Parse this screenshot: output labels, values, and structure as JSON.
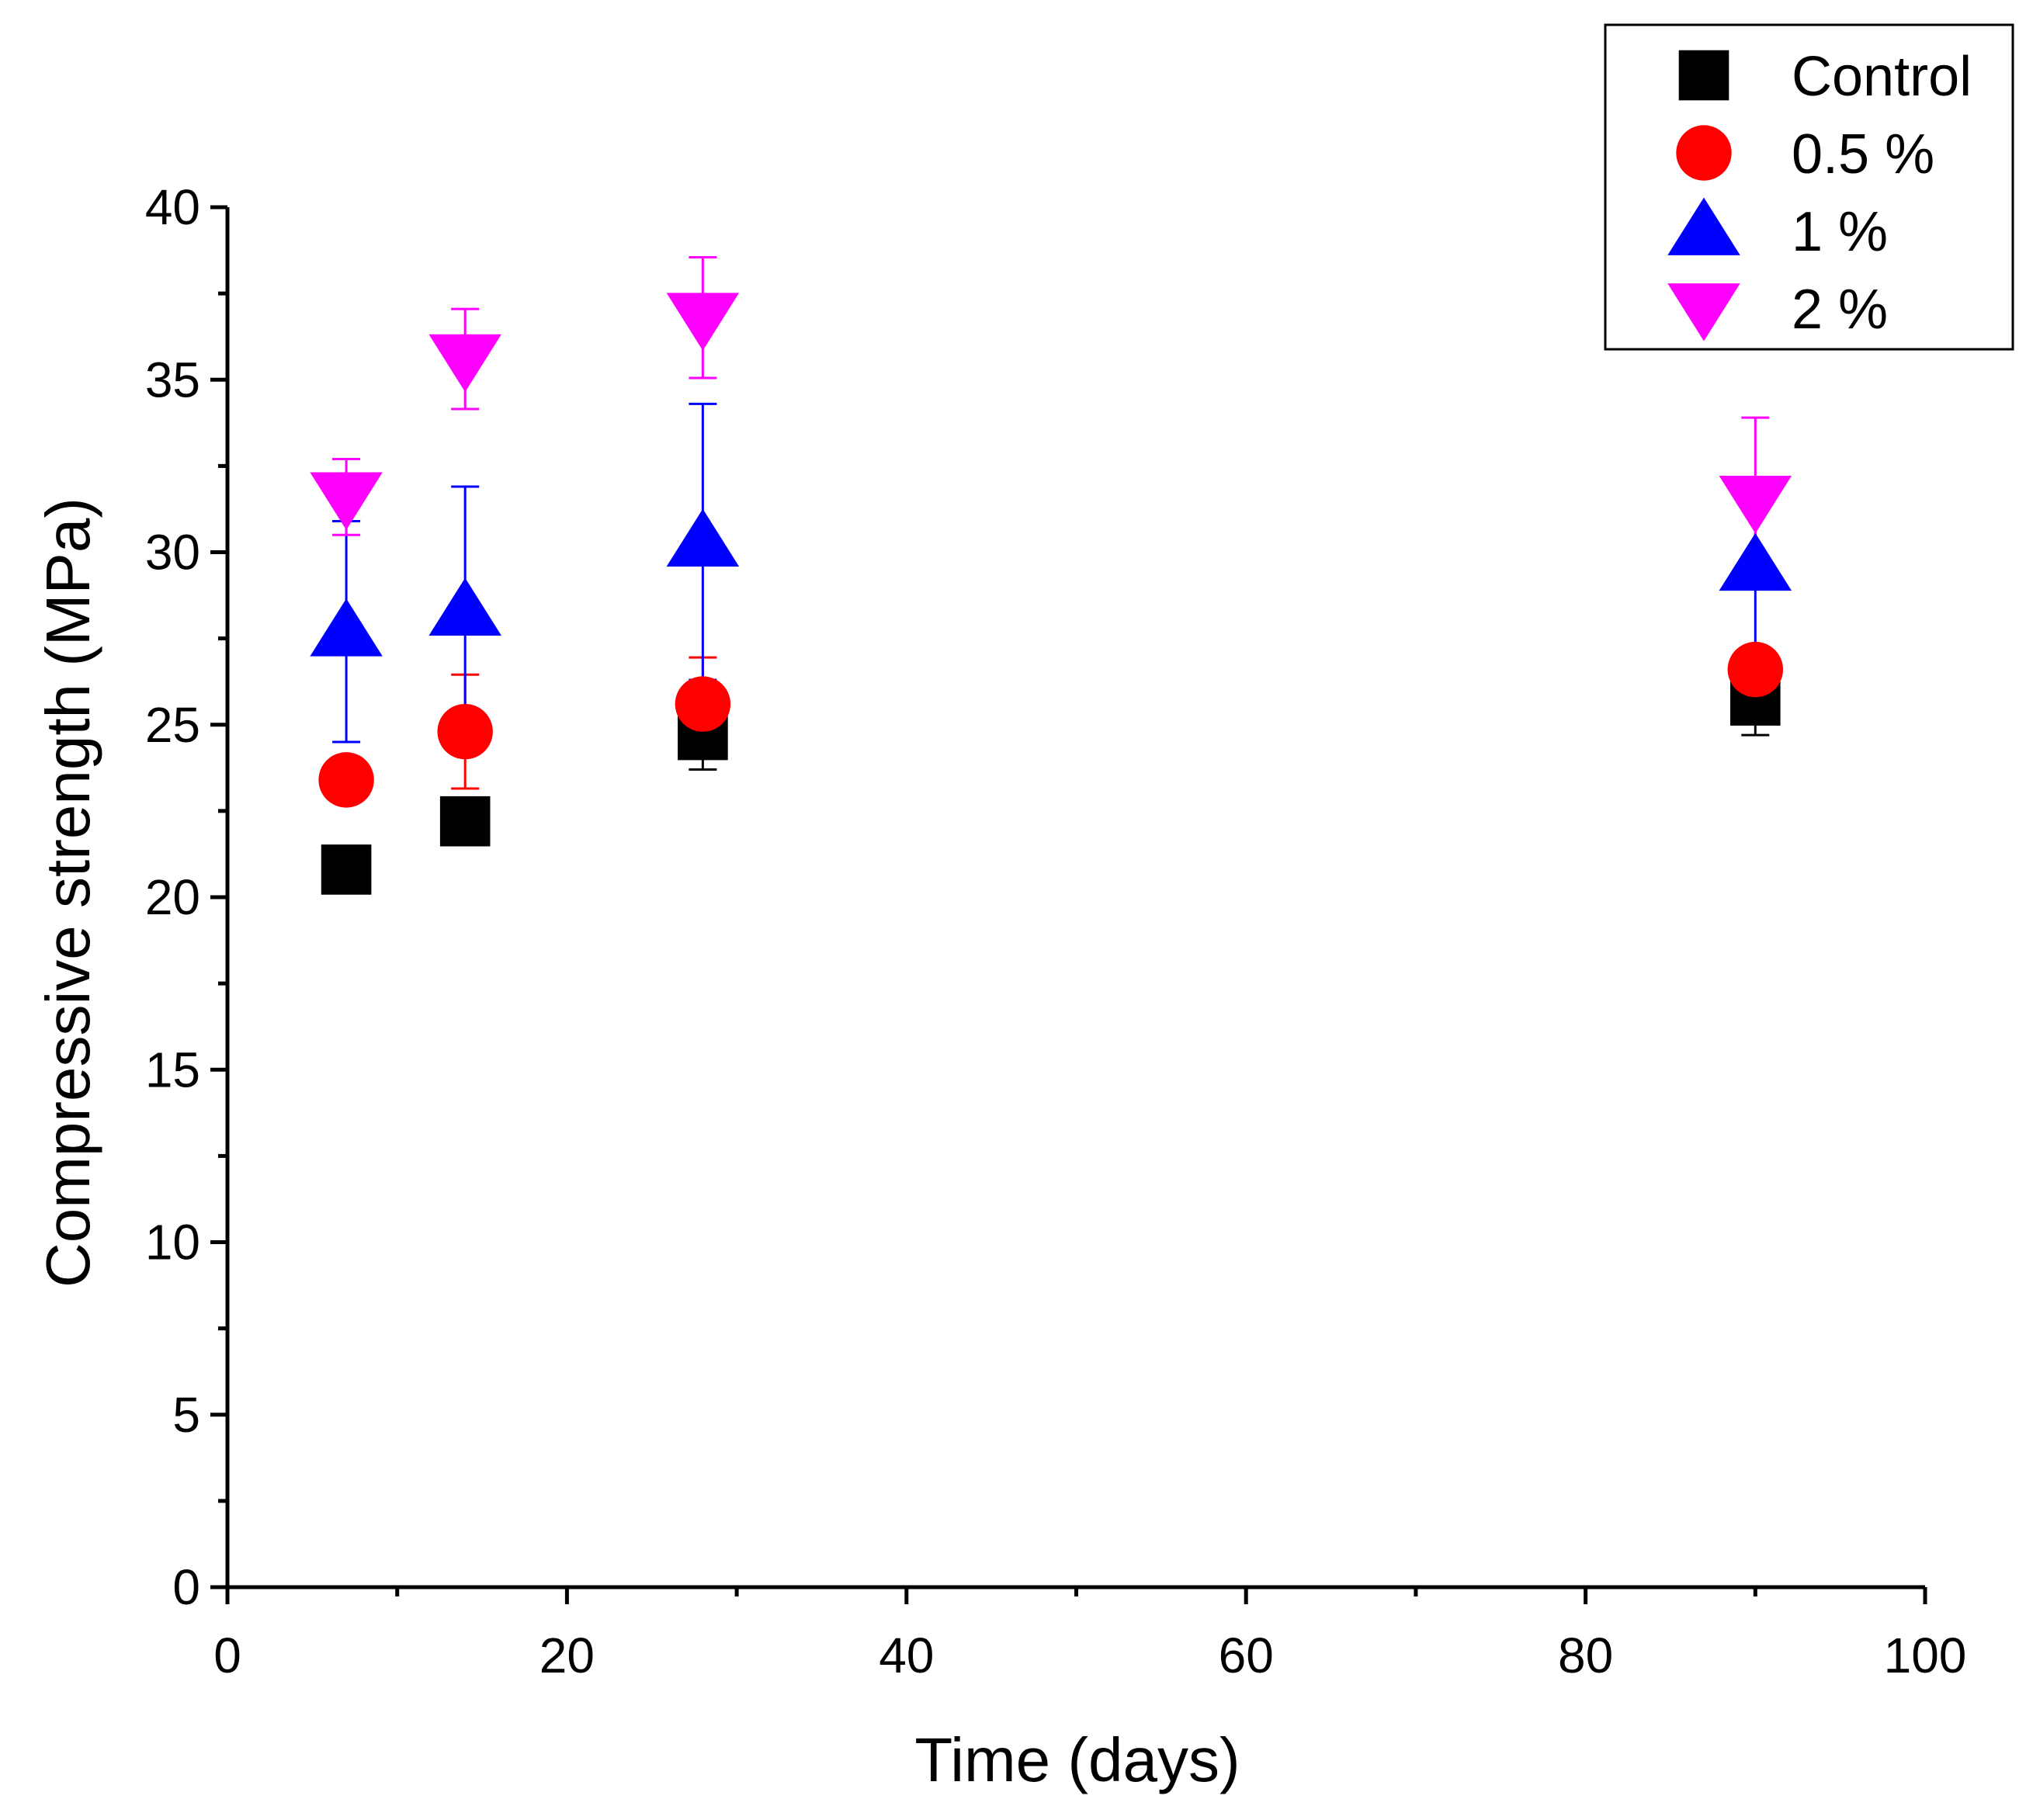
{
  "chart_data": {
    "type": "scatter",
    "title": "",
    "xlabel": "Time (days)",
    "ylabel": "Compressive strength (MPa)",
    "xlim": [
      0,
      100
    ],
    "ylim": [
      0,
      40
    ],
    "x_ticks": [
      0,
      20,
      40,
      60,
      80,
      100
    ],
    "x_tick_labels": [
      "0",
      "20",
      "40",
      "60",
      "80",
      "100"
    ],
    "y_ticks": [
      0,
      5,
      10,
      15,
      20,
      25,
      30,
      35,
      40
    ],
    "y_tick_labels": [
      "0",
      "5",
      "10",
      "15",
      "20",
      "25",
      "30",
      "35",
      "40"
    ],
    "grid": false,
    "legend_position": "top-right",
    "series": [
      {
        "name": "Control",
        "marker": "square",
        "color": "#000000",
        "points": [
          {
            "x": 7,
            "y": 20.8,
            "err": null
          },
          {
            "x": 14,
            "y": 22.2,
            "err": null
          },
          {
            "x": 28,
            "y": 24.7,
            "err": 1.0
          },
          {
            "x": 90,
            "y": 25.7,
            "err": 1.0
          }
        ]
      },
      {
        "name": "0.5 %",
        "marker": "circle",
        "color": "#ff0000",
        "points": [
          {
            "x": 7,
            "y": 23.4,
            "err": null
          },
          {
            "x": 14,
            "y": 24.8,
            "err": 1.65
          },
          {
            "x": 28,
            "y": 25.6,
            "err": 1.35
          },
          {
            "x": 90,
            "y": 26.6,
            "err": null
          }
        ]
      },
      {
        "name": "1 %",
        "marker": "triangle-up",
        "color": "#0000ff",
        "points": [
          {
            "x": 7,
            "y": 27.7,
            "err": 3.2
          },
          {
            "x": 14,
            "y": 28.3,
            "err": 3.6
          },
          {
            "x": 28,
            "y": 30.3,
            "err": 4.0
          },
          {
            "x": 90,
            "y": 29.6,
            "err": 2.4
          }
        ]
      },
      {
        "name": "2 %",
        "marker": "triangle-down",
        "color": "#ff00ff",
        "points": [
          {
            "x": 7,
            "y": 31.6,
            "err": 1.1
          },
          {
            "x": 14,
            "y": 35.6,
            "err": 1.45
          },
          {
            "x": 28,
            "y": 36.8,
            "err": 1.75
          },
          {
            "x": 90,
            "y": 31.5,
            "err": 2.4
          }
        ]
      }
    ]
  }
}
